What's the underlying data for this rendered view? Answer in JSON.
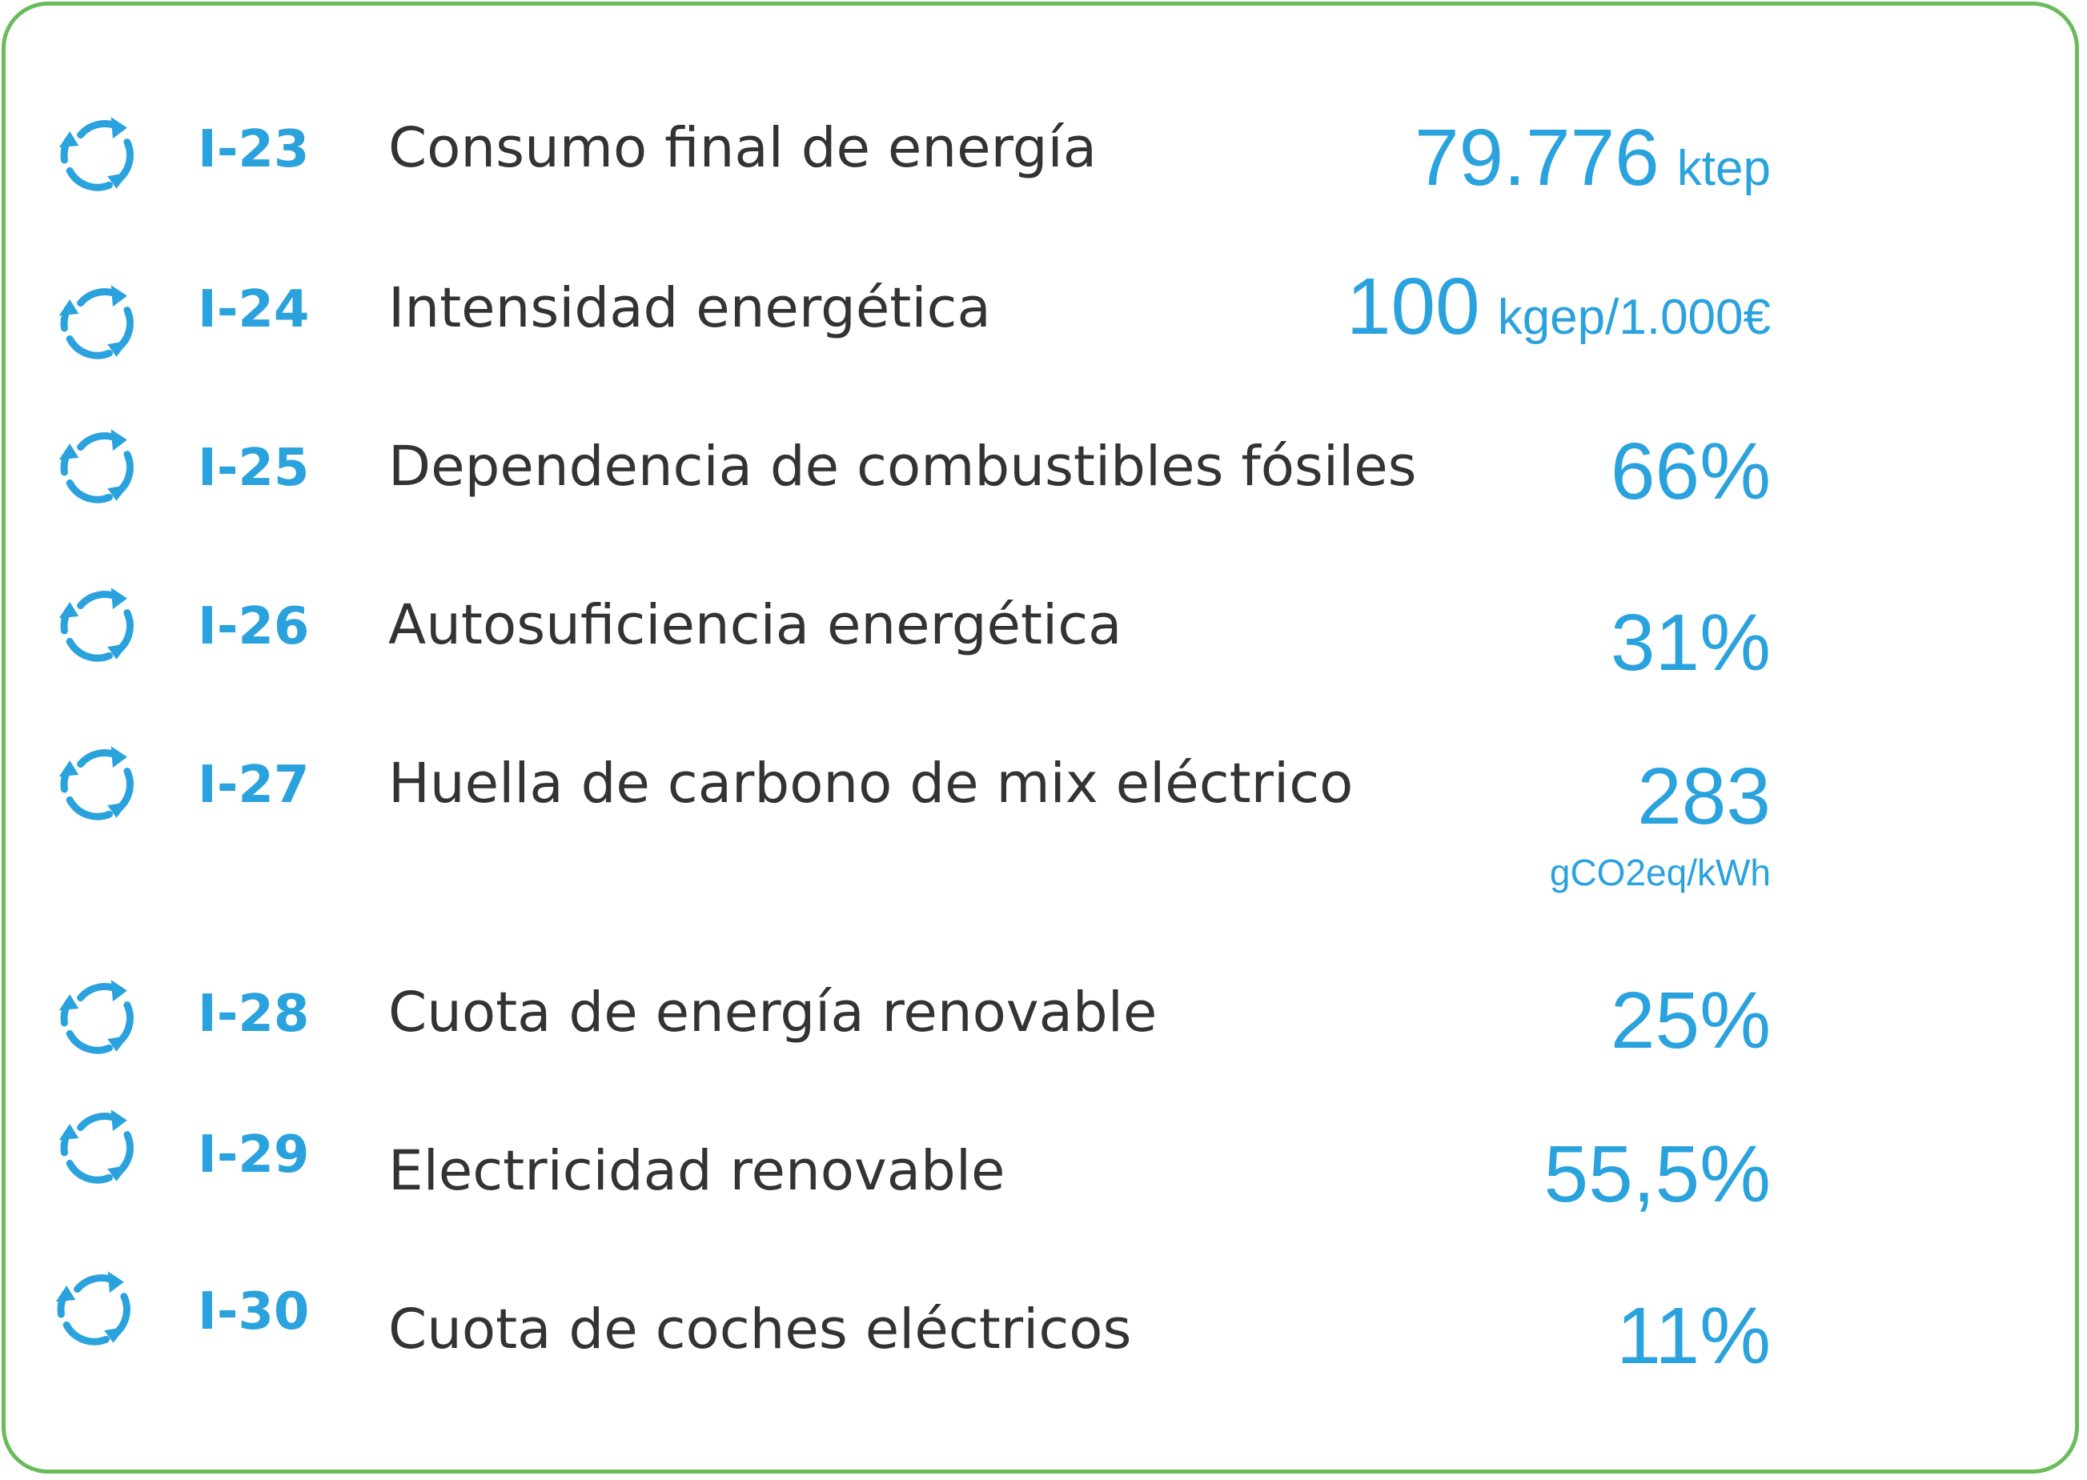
{
  "accent_color": "#2aa2dd",
  "border_color": "#6abb5a",
  "text_color": "#333333",
  "icon_name": "cycle-arrows-icon",
  "indicators": [
    {
      "code": "I-23",
      "label": "Consumo final de energía",
      "value": "79.776",
      "unit": "ktep"
    },
    {
      "code": "I-24",
      "label": "Intensidad energética",
      "value": "100",
      "unit": "kgep/1.000€"
    },
    {
      "code": "I-25",
      "label": "Dependencia de combustibles fósiles",
      "value": "66%"
    },
    {
      "code": "I-26",
      "label": "Autosuficiencia energética",
      "value": "31%"
    },
    {
      "code": "I-27",
      "label": "Huella de carbono de mix eléctrico",
      "value": "283",
      "unit": "gCO2eq/kWh"
    },
    {
      "code": "I-28",
      "label": "Cuota de energía renovable",
      "value": "25%"
    },
    {
      "code": "I-29",
      "label": "Electricidad renovable",
      "value": "55,5%"
    },
    {
      "code": "I-30",
      "label": "Cuota de coches eléctricos",
      "value": "11%"
    }
  ]
}
